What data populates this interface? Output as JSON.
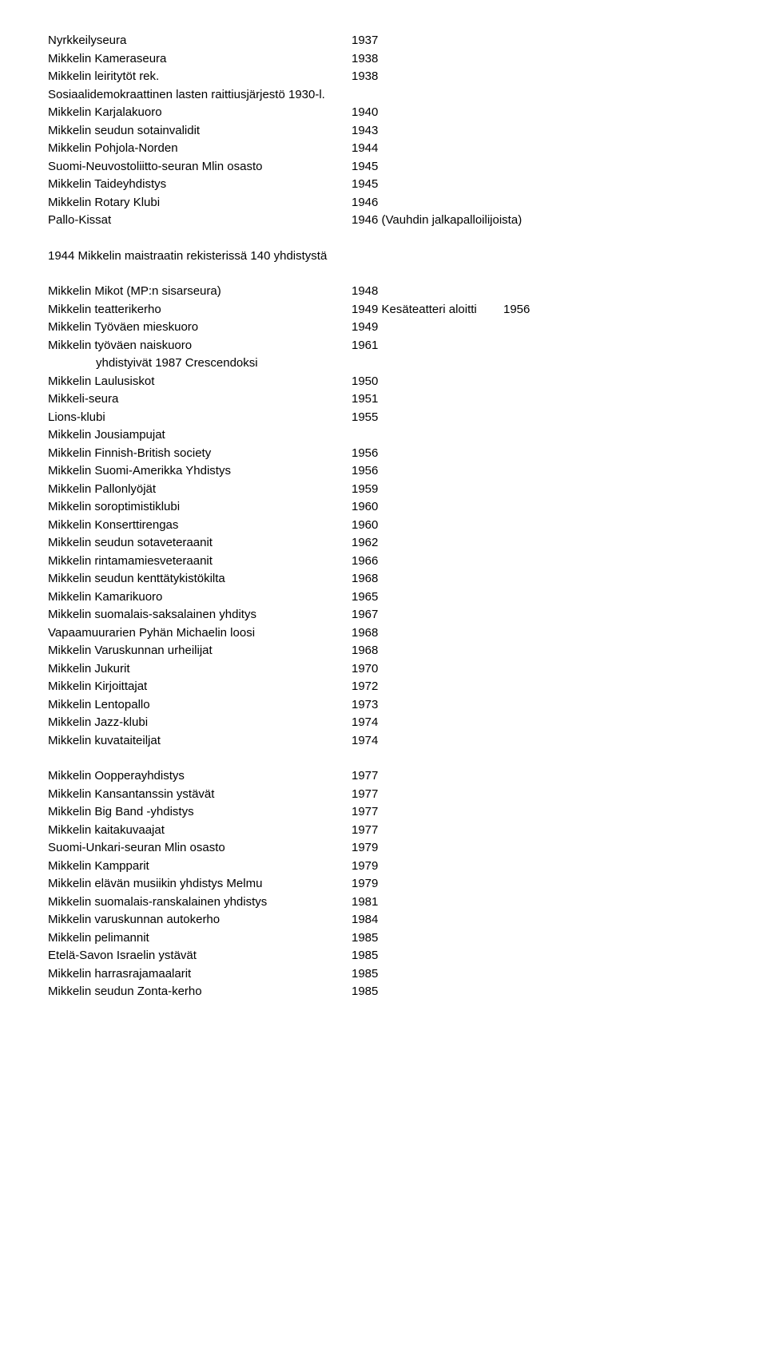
{
  "block1": [
    {
      "name": "Nyrkkeilyseura",
      "year": "1937"
    },
    {
      "name": "Mikkelin Kameraseura",
      "year": "1938"
    },
    {
      "name": "Mikkelin leiritytöt rek.",
      "year": "1938"
    },
    {
      "name": "Sosiaalidemokraattinen lasten raittiusjärjestö 1930-l.",
      "year": ""
    },
    {
      "name": "Mikkelin Karjalakuoro",
      "year": "1940"
    },
    {
      "name": "Mikkelin seudun sotainvalidit",
      "year": "1943"
    },
    {
      "name": "Mikkelin Pohjola-Norden",
      "year": "1944"
    },
    {
      "name": "Suomi-Neuvostoliitto-seuran Mlin osasto",
      "year": "1945"
    },
    {
      "name": "Mikkelin Taideyhdistys",
      "year": "1945"
    },
    {
      "name": "Mikkelin Rotary Klubi",
      "year": "1946"
    },
    {
      "name": "Pallo-Kissat",
      "year": "1946 (Vauhdin jalkapalloilijoista)"
    }
  ],
  "heading": "1944 Mikkelin maistraatin rekisterissä 140 yhdistystä",
  "block2": [
    {
      "name": "Mikkelin Mikot (MP:n sisarseura)",
      "year": "1948",
      "extra": ""
    },
    {
      "name": "Mikkelin teatterikerho",
      "year": "1949 Kesäteatteri aloitti",
      "extra": "1956"
    },
    {
      "name": "Mikkelin Työväen mieskuoro",
      "year": "1949",
      "extra": ""
    },
    {
      "name": "Mikkelin työväen naiskuoro",
      "year": "1961",
      "extra": ""
    },
    {
      "name": "yhdistyivät 1987 Crescendoksi",
      "year": "",
      "extra": "",
      "indent": true
    },
    {
      "name": "Mikkelin Laulusiskot",
      "year": "1950",
      "extra": ""
    },
    {
      "name": "Mikkeli-seura",
      "year": "1951",
      "extra": ""
    },
    {
      "name": "Lions-klubi",
      "year": "1955",
      "extra": ""
    },
    {
      "name": "Mikkelin Jousiampujat",
      "year": "",
      "extra": ""
    },
    {
      "name": "Mikkelin Finnish-British society",
      "year": "1956",
      "extra": ""
    },
    {
      "name": "Mikkelin Suomi-Amerikka Yhdistys",
      "year": "1956",
      "extra": ""
    },
    {
      "name": "Mikkelin Pallonlyöjät",
      "year": "1959",
      "extra": ""
    },
    {
      "name": "Mikkelin soroptimistiklubi",
      "year": "1960",
      "extra": ""
    },
    {
      "name": "Mikkelin Konserttirengas",
      "year": "1960",
      "extra": ""
    },
    {
      "name": "Mikkelin seudun sotaveteraanit",
      "year": "1962",
      "extra": ""
    },
    {
      "name": "Mikkelin rintamamiesveteraanit",
      "year": "1966",
      "extra": ""
    },
    {
      "name": "Mikkelin seudun kenttätykistökilta",
      "year": "1968",
      "extra": ""
    },
    {
      "name": "Mikkelin Kamarikuoro",
      "year": "1965",
      "extra": ""
    },
    {
      "name": "Mikkelin suomalais-saksalainen yhditys",
      "year": "1967",
      "extra": ""
    },
    {
      "name": "Vapaamuurarien Pyhän Michaelin loosi",
      "year": "1968",
      "extra": ""
    },
    {
      "name": "Mikkelin Varuskunnan urheilijat",
      "year": "1968",
      "extra": ""
    },
    {
      "name": "Mikkelin Jukurit",
      "year": "1970",
      "extra": ""
    },
    {
      "name": "Mikkelin Kirjoittajat",
      "year": "1972",
      "extra": ""
    },
    {
      "name": "Mikkelin Lentopallo",
      "year": "1973",
      "extra": ""
    },
    {
      "name": "Mikkelin Jazz-klubi",
      "year": "1974",
      "extra": ""
    },
    {
      "name": "Mikkelin kuvataiteiljat",
      "year": "1974",
      "extra": ""
    }
  ],
  "block3": [
    {
      "name": "Mikkelin Oopperayhdistys",
      "year": "1977"
    },
    {
      "name": "Mikkelin Kansantanssin ystävät",
      "year": "1977"
    },
    {
      "name": "Mikkelin Big Band -yhdistys",
      "year": "1977"
    },
    {
      "name": "Mikkelin kaitakuvaajat",
      "year": "1977"
    },
    {
      "name": "Suomi-Unkari-seuran Mlin osasto",
      "year": "1979"
    },
    {
      "name": "Mikkelin Kampparit",
      "year": "1979"
    },
    {
      "name": "Mikkelin elävän musiikin yhdistys Melmu",
      "year": "1979"
    },
    {
      "name": "Mikkelin suomalais-ranskalainen yhdistys",
      "year": "1981"
    },
    {
      "name": "Mikkelin varuskunnan autokerho",
      "year": "1984"
    },
    {
      "name": "Mikkelin pelimannit",
      "year": "1985"
    },
    {
      "name": "Etelä-Savon Israelin ystävät",
      "year": "1985"
    },
    {
      "name": "Mikkelin harrasrajamaalarit",
      "year": "1985"
    },
    {
      "name": "Mikkelin seudun Zonta-kerho",
      "year": "1985"
    }
  ]
}
